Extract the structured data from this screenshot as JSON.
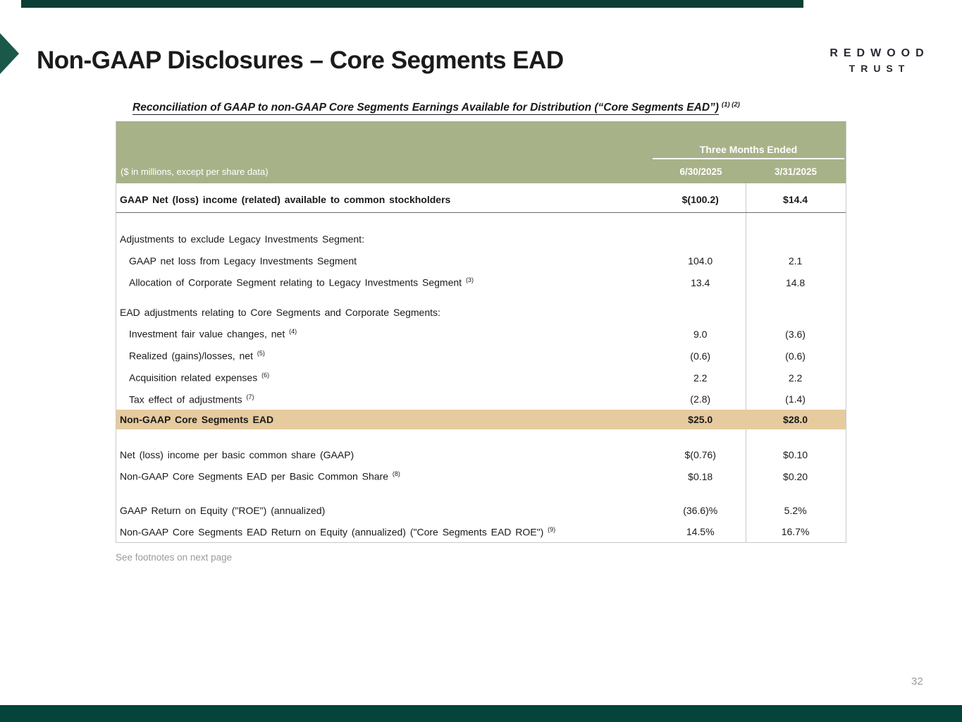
{
  "slide": {
    "title": "Non-GAAP Disclosures – Core Segments EAD",
    "footnote": "See footnotes on next page",
    "page_number": "32"
  },
  "logo": {
    "line1": "REDWOOD",
    "line2": "TRUST"
  },
  "subtitle": {
    "text": "Reconciliation of GAAP to non-GAAP Core Segments Earnings Available for Distribution (“Core Segments EAD”)",
    "sup": "(1) (2)"
  },
  "table": {
    "units_note": "($ in millions, except per share data)",
    "period_header": "Three Months Ended",
    "col1": "6/30/2025",
    "col2": "3/31/2025",
    "rows": [
      {
        "label": "GAAP Net (loss) income (related) available to common stockholders",
        "v1": "$(100.2)",
        "v2": "$14.4"
      },
      {
        "label": "Adjustments to exclude Legacy Investments Segment:"
      },
      {
        "label": "GAAP net loss from Legacy Investments Segment",
        "v1": "104.0",
        "v2": "2.1"
      },
      {
        "label": "Allocation of Corporate Segment relating to Legacy Investments Segment",
        "sup": "(3)",
        "v1": "13.4",
        "v2": "14.8"
      },
      {
        "label": "EAD adjustments relating to Core Segments and Corporate Segments:"
      },
      {
        "label": "Investment fair value changes, net",
        "sup": "(4)",
        "v1": "9.0",
        "v2": "(3.6)"
      },
      {
        "label": "Realized (gains)/losses, net",
        "sup": "(5)",
        "v1": "(0.6)",
        "v2": "(0.6)"
      },
      {
        "label": "Acquisition related expenses",
        "sup": "(6)",
        "v1": "2.2",
        "v2": "2.2"
      },
      {
        "label": "Tax effect of adjustments",
        "sup": "(7)",
        "v1": "(2.8)",
        "v2": "(1.4)"
      },
      {
        "label": "Non-GAAP Core Segments EAD",
        "v1": "$25.0",
        "v2": "$28.0"
      },
      {
        "label": "Net (loss) income per basic common share (GAAP)",
        "v1": "$(0.76)",
        "v2": "$0.10"
      },
      {
        "label": "Non-GAAP Core Segments EAD per Basic Common Share",
        "sup": "(8)",
        "v1": "$0.18",
        "v2": "$0.20"
      },
      {
        "label": "GAAP Return on Equity (\"ROE\") (annualized)",
        "v1": "(36.6)%",
        "v2": "5.2%"
      },
      {
        "label": "Non-GAAP Core Segments EAD Return on Equity (annualized) (\"Core Segments EAD ROE\")",
        "sup": "(9)",
        "v1": "14.5%",
        "v2": "16.7%"
      }
    ]
  },
  "colors": {
    "header_green": "#a8b288",
    "highlight_tan": "#e6cb9f",
    "bar_green": "#05443a",
    "top_bar": "#0b3e34",
    "chevron_green": "#1a5949"
  }
}
